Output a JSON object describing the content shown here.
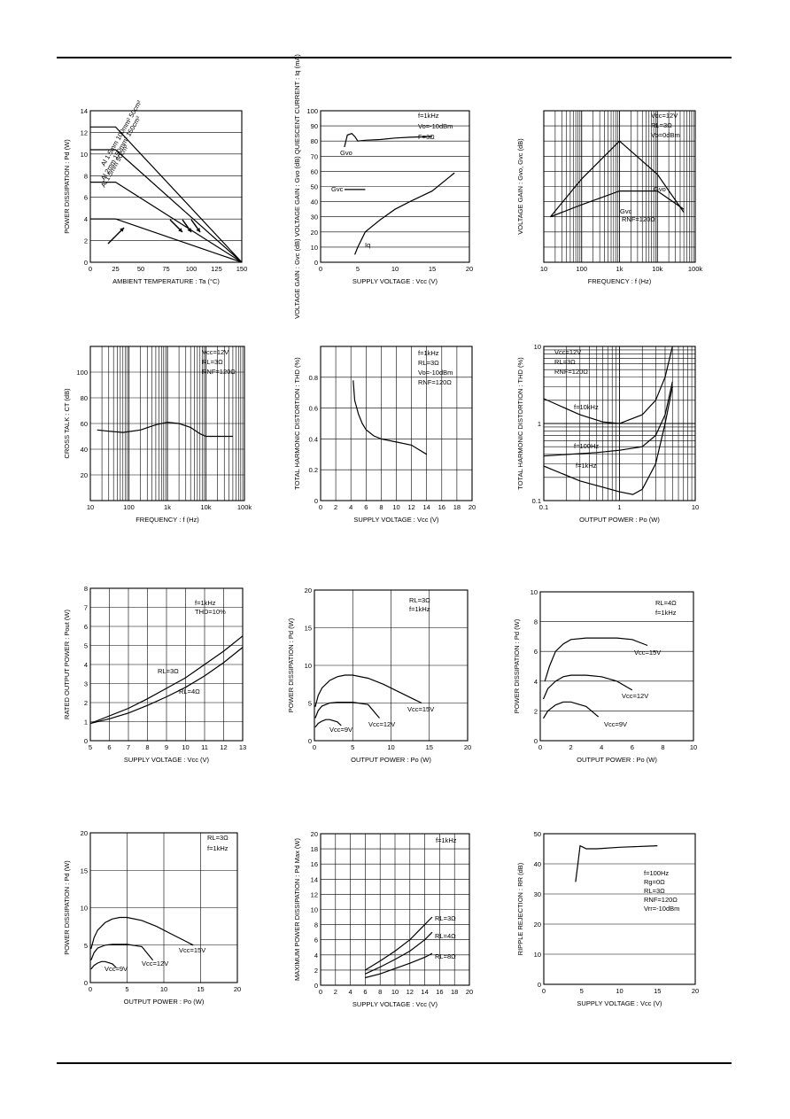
{
  "chart_data": [
    {
      "type": "line",
      "ylabel": "POWER DISSIPATION : Pd (W)",
      "xlabel": "AMBIENT TEMPERATURE : Ta (°C)",
      "xlim": [
        0,
        150
      ],
      "ylim": [
        0,
        14
      ],
      "xticks": [
        0,
        25,
        50,
        75,
        100,
        125,
        150
      ],
      "yticks": [
        0,
        2,
        4,
        6,
        8,
        10,
        12,
        14
      ],
      "grid": "h",
      "series": [
        {
          "name": "Al 2mm 150mm² 150cm²",
          "x": [
            0,
            25,
            150
          ],
          "y": [
            12.5,
            12.5,
            0
          ]
        },
        {
          "name": "Al 1.5mm 100mm² 50cm²",
          "x": [
            0,
            25,
            150
          ],
          "y": [
            10.4,
            10.4,
            0
          ]
        },
        {
          "name": "Al 1.5mm 50cm²",
          "x": [
            0,
            25,
            150
          ],
          "y": [
            7.4,
            7.4,
            0
          ]
        },
        {
          "name": "",
          "x": [
            0,
            25,
            150
          ],
          "y": [
            4.0,
            4.0,
            0
          ]
        }
      ],
      "annotations": [
        "Al 2mm 150mm² 150cm²",
        "Al 1.5mm 100mm² 50cm²",
        "Al 1.5mm 50cm²"
      ]
    },
    {
      "type": "line",
      "ylabel": "VOLTAGE GAIN : Gvc (dB) VOLTAGE GAIN : Gvo (dB) QUIESCENT CURRENT : Iq (mA)",
      "xlabel": "SUPPLY VOLTAGE : Vcc (V)",
      "xlim": [
        0,
        20
      ],
      "ylim": [
        0,
        100
      ],
      "xticks": [
        0,
        5,
        10,
        15,
        20
      ],
      "yticks": [
        0,
        10,
        20,
        30,
        40,
        50,
        60,
        70,
        80,
        90,
        100
      ],
      "grid": "h",
      "series": [
        {
          "name": "Gvo",
          "x": [
            3.2,
            3.6,
            4.2,
            4.6,
            5.0,
            6,
            8,
            10,
            12,
            15
          ],
          "y": [
            76,
            84,
            85,
            83,
            80,
            80.5,
            81,
            82,
            82.5,
            83
          ]
        },
        {
          "name": "Gvc",
          "x": [
            3.2,
            5,
            6
          ],
          "y": [
            48,
            48,
            48
          ]
        },
        {
          "name": "Iq",
          "x": [
            4.6,
            5,
            6,
            8,
            10,
            12,
            15,
            18
          ],
          "y": [
            5,
            10,
            20,
            28,
            35,
            40,
            47,
            59
          ]
        }
      ],
      "annotations": [
        "f=1kHz",
        "Vo=-10dBm",
        "F=3Ω",
        "Gvo",
        "Gvc",
        "Iq"
      ]
    },
    {
      "type": "line",
      "ylabel": "VOLTAGE GAIN : Gvo, Gvc (dB)",
      "xlabel": "FREQUENCY : f (Hz)",
      "xscale": "log",
      "xlim": [
        10,
        100000
      ],
      "ylim": [
        0,
        100
      ],
      "xticks": [
        10,
        100,
        1000,
        10000,
        100000
      ],
      "xticklabels": [
        "10",
        "100",
        "1k",
        "10k",
        "100k"
      ],
      "yticks": [
        0,
        10,
        20,
        30,
        40,
        50,
        60,
        70,
        80,
        90,
        100
      ],
      "yticklabels": [
        "",
        "",
        "",
        "",
        "",
        "",
        "",
        "",
        "",
        "",
        ""
      ],
      "grid": "both",
      "series": [
        {
          "name": "Gvo",
          "x": [
            15,
            100,
            1000,
            10000,
            50000
          ],
          "y": [
            30,
            55,
            80,
            58,
            33
          ]
        },
        {
          "name": "Gvc",
          "x": [
            15,
            100,
            1000,
            10000,
            50000
          ],
          "y": [
            30,
            38,
            47,
            47,
            35
          ]
        }
      ],
      "annotations": [
        "Vcc=12V",
        "RL=3Ω",
        "Vo=0dBm",
        "Gvo",
        "Gvc",
        "RNF=120Ω"
      ]
    },
    {
      "type": "line",
      "ylabel": "CROSS TALK : CT (dB)",
      "xlabel": "FREQUENCY : f (Hz)",
      "xscale": "log",
      "xlim": [
        10,
        100000
      ],
      "ylim": [
        0,
        120
      ],
      "xticks": [
        10,
        100,
        1000,
        10000,
        100000
      ],
      "xticklabels": [
        "10",
        "100",
        "1k",
        "10k",
        "100k"
      ],
      "yticks": [
        20,
        40,
        60,
        80,
        100
      ],
      "grid": "both",
      "series": [
        {
          "name": "",
          "x": [
            15,
            30,
            70,
            200,
            500,
            1000,
            2000,
            4000,
            7000,
            10000,
            50000
          ],
          "y": [
            55,
            54,
            53,
            55,
            59,
            61,
            60,
            57,
            52,
            50,
            50
          ]
        }
      ],
      "annotations": [
        "Vcc=12V",
        "RL=3Ω",
        "RNF=120Ω"
      ]
    },
    {
      "type": "line",
      "ylabel": "TOTAL HARMONIC DISTORTION : THD (%)",
      "xlabel": "SUPPLY VOLTAGE : Vcc (V)",
      "xlim": [
        0,
        20
      ],
      "ylim": [
        0,
        1.0
      ],
      "xticks": [
        0,
        2,
        4,
        6,
        8,
        10,
        12,
        14,
        16,
        18,
        20
      ],
      "yticks": [
        0,
        0.2,
        0.4,
        0.6,
        0.8
      ],
      "grid": "both",
      "series": [
        {
          "name": "",
          "x": [
            4.3,
            4.5,
            5,
            5.5,
            6,
            7,
            8,
            10,
            12,
            14
          ],
          "y": [
            0.78,
            0.65,
            0.56,
            0.5,
            0.46,
            0.42,
            0.4,
            0.38,
            0.36,
            0.3
          ]
        }
      ],
      "annotations": [
        "f=1kHz",
        "RL=3Ω",
        "Vo=-10dBm",
        "RNF=120Ω"
      ]
    },
    {
      "type": "line",
      "ylabel": "TOTAL HARMONIC DISTORTION : THD (%)",
      "xlabel": "OUTPUT POWER : Po (W)",
      "xscale": "log",
      "yscale": "log",
      "xlim": [
        0.1,
        10
      ],
      "ylim": [
        0.1,
        10
      ],
      "xticks": [
        0.1,
        1,
        10
      ],
      "yticks": [
        0.1,
        1,
        10
      ],
      "grid": "both",
      "series": [
        {
          "name": "f=10kHz",
          "x": [
            0.1,
            0.3,
            0.6,
            1,
            2,
            3,
            4,
            5
          ],
          "y": [
            2.1,
            1.3,
            1.05,
            1.0,
            1.3,
            2.0,
            4.0,
            10
          ]
        },
        {
          "name": "f=100Hz",
          "x": [
            0.1,
            0.5,
            1,
            2,
            3,
            4,
            5
          ],
          "y": [
            0.38,
            0.42,
            0.45,
            0.5,
            0.7,
            1.3,
            3.5
          ]
        },
        {
          "name": "f=1kHz",
          "x": [
            0.1,
            0.3,
            1,
            1.5,
            2,
            3,
            4,
            5
          ],
          "y": [
            0.28,
            0.18,
            0.13,
            0.12,
            0.14,
            0.3,
            1.0,
            3.0
          ]
        }
      ],
      "annotations": [
        "Vcc=12V",
        "RL=3Ω",
        "RNF=120Ω",
        "f=10kHz",
        "f=100Hz",
        "f=1kHz"
      ]
    },
    {
      "type": "line",
      "ylabel": "RATED OUTPUT POWER : Pout (W)",
      "xlabel": "SUPPLY VOLTAGE : Vcc (V)",
      "xlim": [
        5,
        13
      ],
      "ylim": [
        0,
        8
      ],
      "xticks": [
        5,
        6,
        7,
        8,
        9,
        10,
        11,
        12,
        13
      ],
      "yticks": [
        0,
        1,
        2,
        3,
        4,
        5,
        6,
        7,
        8
      ],
      "grid": "both",
      "series": [
        {
          "name": "RL=3Ω",
          "x": [
            5,
            6,
            7,
            8,
            9,
            10,
            11,
            12,
            13
          ],
          "y": [
            0.9,
            1.3,
            1.7,
            2.2,
            2.75,
            3.3,
            4.0,
            4.7,
            5.5
          ]
        },
        {
          "name": "RL=4Ω",
          "x": [
            5,
            6,
            7,
            8,
            9,
            10,
            11,
            12,
            13
          ],
          "y": [
            0.9,
            1.15,
            1.45,
            1.85,
            2.3,
            2.8,
            3.4,
            4.1,
            4.9
          ]
        }
      ],
      "annotations": [
        "f=1kHz",
        "THD=10%",
        "RL=3Ω",
        "RL=4Ω"
      ]
    },
    {
      "type": "line",
      "ylabel": "POWER DISSIPATION : Pd (W)",
      "xlabel": "OUTPUT POWER : Po (W)",
      "xlim": [
        0,
        20
      ],
      "ylim": [
        0,
        20
      ],
      "xticks": [
        0,
        5,
        10,
        15,
        20
      ],
      "yticks": [
        0,
        5,
        10,
        15,
        20
      ],
      "grid": "both",
      "series": [
        {
          "name": "Vcc=15V",
          "x": [
            0.1,
            0.5,
            1,
            2,
            3,
            4,
            5,
            7,
            9,
            11,
            13,
            14
          ],
          "y": [
            4.5,
            6.0,
            7.0,
            8.0,
            8.5,
            8.7,
            8.7,
            8.3,
            7.5,
            6.5,
            5.5,
            5.0
          ]
        },
        {
          "name": "Vcc=12V",
          "x": [
            0.1,
            0.5,
            1,
            2,
            3,
            4,
            5,
            7,
            8.5
          ],
          "y": [
            3.0,
            4.0,
            4.6,
            5.0,
            5.1,
            5.1,
            5.1,
            4.8,
            3.0
          ]
        },
        {
          "name": "Vcc=9V",
          "x": [
            0.1,
            0.5,
            1,
            1.5,
            2,
            3,
            3.5
          ],
          "y": [
            1.8,
            2.3,
            2.6,
            2.8,
            2.8,
            2.5,
            2.0
          ]
        }
      ],
      "annotations": [
        "RL=3Ω",
        "f=1kHz",
        "Vcc=15V",
        "Vcc=12V",
        "Vcc=9V"
      ]
    },
    {
      "type": "line",
      "ylabel": "POWER DISSIPATION : Pd (W)",
      "xlabel": "OUTPUT POWER : Po (W)",
      "xlim": [
        0,
        10
      ],
      "ylim": [
        0,
        10
      ],
      "xticks": [
        0,
        2,
        4,
        6,
        8,
        10
      ],
      "yticks": [
        0,
        2,
        4,
        6,
        8,
        10
      ],
      "grid": "h",
      "series": [
        {
          "name": "Vcc=15V",
          "x": [
            0.3,
            0.6,
            1,
            1.5,
            2,
            3,
            4,
            5,
            6,
            7
          ],
          "y": [
            4.0,
            5.0,
            6.0,
            6.5,
            6.8,
            6.9,
            6.9,
            6.9,
            6.8,
            6.4
          ]
        },
        {
          "name": "Vcc=12V",
          "x": [
            0.2,
            0.5,
            1,
            1.5,
            2,
            3,
            4,
            5,
            6
          ],
          "y": [
            2.8,
            3.5,
            4.0,
            4.3,
            4.4,
            4.4,
            4.3,
            4.0,
            3.4
          ]
        },
        {
          "name": "Vcc=9V",
          "x": [
            0.2,
            0.5,
            1,
            1.5,
            2,
            3,
            3.8
          ],
          "y": [
            1.5,
            2.0,
            2.4,
            2.6,
            2.6,
            2.3,
            1.6
          ]
        }
      ],
      "annotations": [
        "RL=4Ω",
        "f=1kHz",
        "Vcc=15V",
        "Vcc=12V",
        "Vcc=9V"
      ]
    },
    {
      "type": "line",
      "ylabel": "POWER DISSIPATION : Pd (W)",
      "xlabel": "OUTPUT POWER : Po (W)",
      "xlim": [
        0,
        20
      ],
      "ylim": [
        0,
        20
      ],
      "xticks": [
        0,
        5,
        10,
        15,
        20
      ],
      "yticks": [
        0,
        5,
        10,
        15,
        20
      ],
      "grid": "both",
      "series": [
        {
          "name": "Vcc=15V",
          "x": [
            0.1,
            0.5,
            1,
            2,
            3,
            4,
            5,
            7,
            9,
            11,
            13,
            14
          ],
          "y": [
            4.5,
            6.0,
            7.0,
            8.0,
            8.5,
            8.7,
            8.7,
            8.3,
            7.5,
            6.5,
            5.5,
            5.0
          ]
        },
        {
          "name": "Vcc=12V",
          "x": [
            0.1,
            0.5,
            1,
            2,
            3,
            4,
            5,
            7,
            8.5
          ],
          "y": [
            3.0,
            4.0,
            4.6,
            5.0,
            5.1,
            5.1,
            5.1,
            4.8,
            3.0
          ]
        },
        {
          "name": "Vcc=9V",
          "x": [
            0.1,
            0.5,
            1,
            1.5,
            2,
            3,
            3.5
          ],
          "y": [
            1.8,
            2.3,
            2.6,
            2.8,
            2.8,
            2.5,
            2.0
          ]
        }
      ],
      "annotations": [
        "RL=3Ω",
        "f=1kHz",
        "Vcc=15V",
        "Vcc=12V",
        "Vcc=9V"
      ]
    },
    {
      "type": "line",
      "ylabel": "MAXIMUM POWER DISSIPATION : Pd Max (W)",
      "xlabel": "SUPPLY VOLTAGE : Vcc (V)",
      "xlim": [
        0,
        20
      ],
      "ylim": [
        0,
        20
      ],
      "xticks": [
        0,
        2,
        4,
        6,
        8,
        10,
        12,
        14,
        16,
        18,
        20
      ],
      "yticks": [
        0,
        2,
        4,
        6,
        8,
        10,
        12,
        14,
        16,
        18,
        20
      ],
      "grid": "both",
      "series": [
        {
          "name": "RL=3Ω",
          "x": [
            6,
            8,
            10,
            12,
            14,
            15
          ],
          "y": [
            2.0,
            3.2,
            4.5,
            6.0,
            8.0,
            9.0
          ]
        },
        {
          "name": "RL=4Ω",
          "x": [
            6,
            8,
            10,
            12,
            14,
            15
          ],
          "y": [
            1.5,
            2.4,
            3.4,
            4.5,
            6.0,
            7.0
          ]
        },
        {
          "name": "RL=8Ω",
          "x": [
            6,
            8,
            10,
            12,
            14,
            15
          ],
          "y": [
            1.0,
            1.5,
            2.2,
            2.9,
            3.7,
            4.2
          ]
        }
      ],
      "annotations": [
        "f=1kHz",
        "RL=3Ω",
        "RL=4Ω",
        "RL=8Ω"
      ]
    },
    {
      "type": "line",
      "ylabel": "RIPPLE REJECTION : RR (dB)",
      "xlabel": "SUPPLY VOLTAGE : Vcc (V)",
      "xlim": [
        0,
        20
      ],
      "ylim": [
        0,
        50
      ],
      "xticks": [
        0,
        5,
        10,
        15,
        20
      ],
      "yticks": [
        0,
        10,
        20,
        30,
        40,
        50
      ],
      "grid": "h",
      "series": [
        {
          "name": "",
          "x": [
            4.2,
            4.5,
            4.8,
            5.2,
            5.6,
            7,
            10,
            15
          ],
          "y": [
            34,
            40,
            46,
            45.5,
            45,
            45,
            45.5,
            46
          ]
        }
      ],
      "annotations": [
        "f=100Hz",
        "Rg=0Ω",
        "RL=3Ω",
        "RNF=120Ω",
        "Vrr=-10dBm"
      ]
    }
  ]
}
